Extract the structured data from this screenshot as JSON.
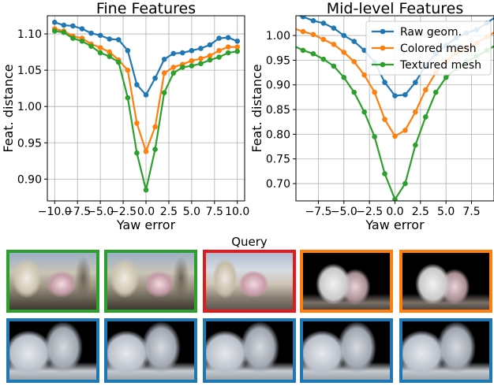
{
  "colors": {
    "raw": "#1f77b4",
    "colored": "#ff7f0e",
    "textured": "#2ca02c",
    "query": "#e31a1c"
  },
  "chart_data": [
    {
      "type": "line",
      "title": "Fine Features",
      "xlabel": "Yaw error",
      "ylabel": "Feat. distance",
      "xlim": [
        -10.8,
        10.8
      ],
      "ylim": [
        0.87,
        1.125
      ],
      "xticks": [
        -10.0,
        -7.5,
        -5.0,
        -2.5,
        0.0,
        2.5,
        5.0,
        7.5,
        10.0
      ],
      "xtick_labels": [
        "−10.0",
        "−7.5",
        "−5.0",
        "−2.5",
        "0.0",
        "2.5",
        "5.0",
        "7.5",
        "10.0"
      ],
      "yticks": [
        0.9,
        0.95,
        1.0,
        1.05,
        1.1
      ],
      "ytick_labels": [
        "0.90",
        "0.95",
        "1.00",
        "1.05",
        "1.10"
      ],
      "grid": true,
      "x": [
        -10,
        -9,
        -8,
        -7,
        -6,
        -5,
        -4,
        -3,
        -2,
        -1,
        0,
        1,
        2,
        3,
        4,
        5,
        6,
        7,
        8,
        9,
        10
      ],
      "series": [
        {
          "name": "Raw geom.",
          "color_key": "raw",
          "values": [
            1.116,
            1.112,
            1.111,
            1.107,
            1.101,
            1.098,
            1.093,
            1.092,
            1.077,
            1.03,
            1.016,
            1.039,
            1.065,
            1.073,
            1.074,
            1.077,
            1.08,
            1.085,
            1.094,
            1.095,
            1.09
          ]
        },
        {
          "name": "Colored mesh",
          "color_key": "colored",
          "values": [
            1.107,
            1.104,
            1.097,
            1.094,
            1.086,
            1.081,
            1.075,
            1.064,
            1.05,
            0.977,
            0.938,
            0.972,
            1.046,
            1.054,
            1.058,
            1.063,
            1.066,
            1.07,
            1.077,
            1.082,
            1.082
          ]
        },
        {
          "name": "Textured mesh",
          "color_key": "textured",
          "values": [
            1.104,
            1.102,
            1.094,
            1.09,
            1.083,
            1.074,
            1.069,
            1.061,
            1.012,
            0.936,
            0.885,
            0.941,
            1.019,
            1.046,
            1.054,
            1.056,
            1.059,
            1.064,
            1.068,
            1.074,
            1.076
          ]
        }
      ]
    },
    {
      "type": "line",
      "title": "Mid-level Features",
      "xlabel": "Yaw error",
      "ylabel": "Feat. distance",
      "xlim": [
        -9.7,
        9.7
      ],
      "ylim": [
        0.665,
        1.04
      ],
      "xticks": [
        -7.5,
        -5.0,
        -2.5,
        0.0,
        2.5,
        5.0,
        7.5
      ],
      "xtick_labels": [
        "−7.5",
        "−5.0",
        "−2.5",
        "0.0",
        "2.5",
        "5.0",
        "7.5"
      ],
      "yticks": [
        0.7,
        0.75,
        0.8,
        0.85,
        0.9,
        0.95,
        1.0
      ],
      "ytick_labels": [
        "0.70",
        "0.75",
        "0.80",
        "0.85",
        "0.90",
        "0.95",
        "1.00"
      ],
      "grid": true,
      "legend": "top-right",
      "x": [
        -10,
        -9,
        -8,
        -7,
        -6,
        -5,
        -4,
        -3,
        -2,
        -1,
        0,
        1,
        2,
        3,
        4,
        5,
        6,
        7,
        8,
        9,
        10
      ],
      "series": [
        {
          "name": "Raw geom.",
          "color_key": "raw",
          "values": [
            1.045,
            1.038,
            1.03,
            1.025,
            1.015,
            1.0,
            0.988,
            0.97,
            0.946,
            0.905,
            0.878,
            0.88,
            0.905,
            0.94,
            0.963,
            0.98,
            0.995,
            1.005,
            1.012,
            1.025,
            1.04
          ]
        },
        {
          "name": "Colored mesh",
          "color_key": "colored",
          "values": [
            1.015,
            1.008,
            1.002,
            0.992,
            0.982,
            0.966,
            0.947,
            0.92,
            0.885,
            0.83,
            0.796,
            0.808,
            0.845,
            0.89,
            0.925,
            0.948,
            0.965,
            0.975,
            0.985,
            0.997,
            1.01
          ]
        },
        {
          "name": "Textured mesh",
          "color_key": "textured",
          "values": [
            0.98,
            0.97,
            0.963,
            0.952,
            0.938,
            0.915,
            0.885,
            0.845,
            0.795,
            0.72,
            0.668,
            0.7,
            0.778,
            0.835,
            0.885,
            0.915,
            0.933,
            0.948,
            0.958,
            0.97,
            0.982
          ]
        }
      ]
    }
  ],
  "images": {
    "query_label": "Query",
    "row1": [
      "textured",
      "textured",
      "query",
      "colored",
      "colored"
    ],
    "row2": [
      "raw",
      "raw",
      "raw",
      "raw",
      "raw"
    ]
  }
}
